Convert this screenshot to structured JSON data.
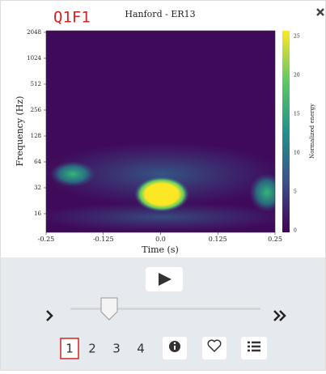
{
  "header": {
    "label": "Q1F1",
    "title": "Hanford - ER13"
  },
  "plot": {
    "y_axis_label": "Frequency (Hz)",
    "y_ticks": [
      "2048",
      "1024",
      "512",
      "256",
      "128",
      "64",
      "32",
      "16"
    ],
    "x_axis_label": "Time (s)",
    "x_ticks": [
      "-0.25",
      "-0.125",
      "0.0",
      "0.125",
      "0.25"
    ],
    "colorbar_label": "Normalized energy",
    "colorbar_ticks": [
      "25",
      "20",
      "15",
      "10",
      "5",
      "0"
    ]
  },
  "controls": {
    "pages": [
      "1",
      "2",
      "3",
      "4"
    ]
  }
}
